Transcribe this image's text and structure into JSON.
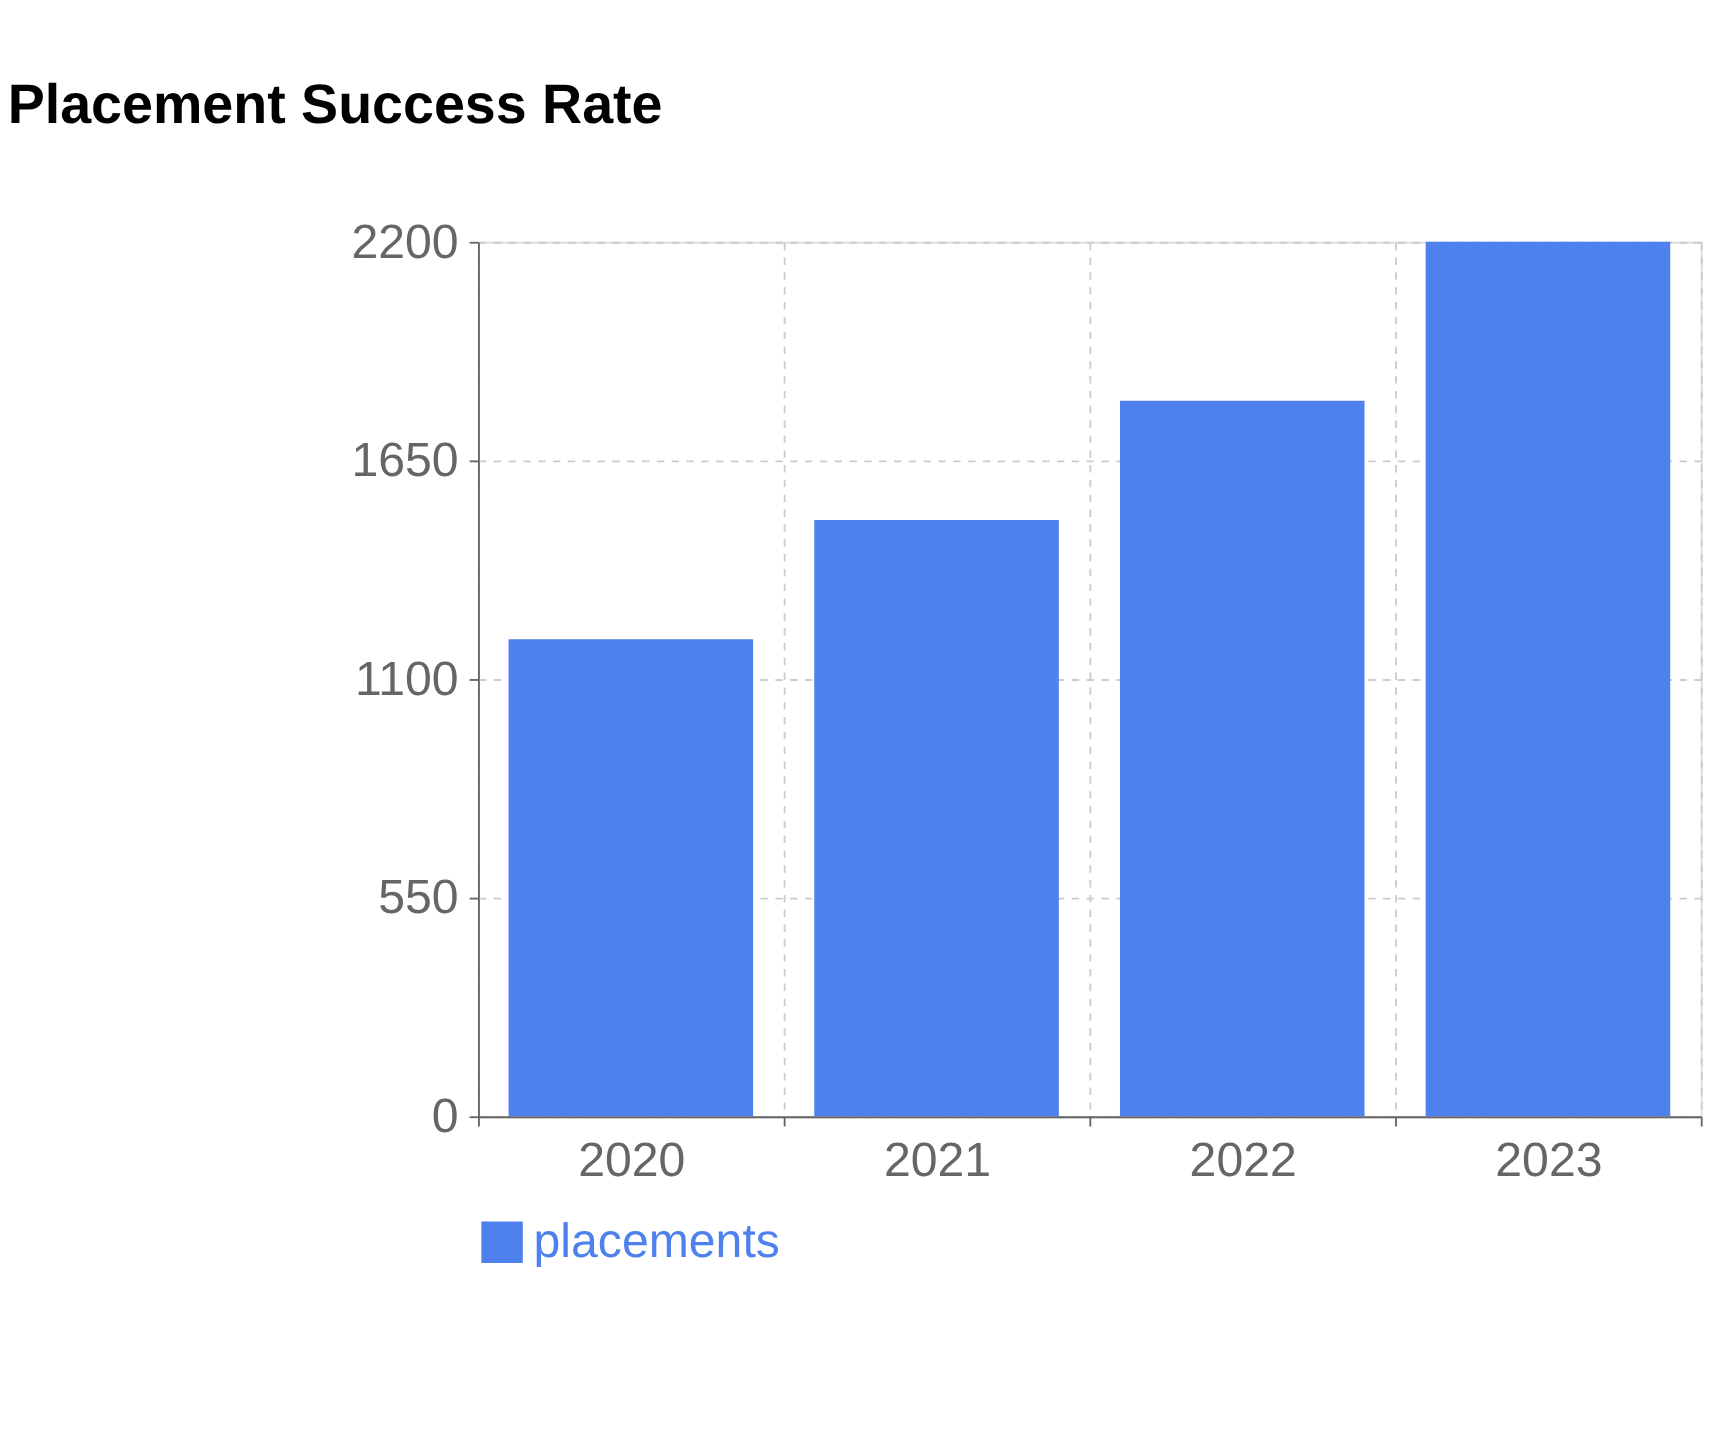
{
  "chart_data": {
    "type": "bar",
    "title": "Placement Success Rate",
    "categories": [
      "2020",
      "2021",
      "2022",
      "2023"
    ],
    "series": [
      {
        "name": "placements",
        "color": "#4e80ee",
        "values": [
          1200,
          1500,
          1800,
          2200
        ]
      }
    ],
    "ylim": [
      0,
      2200
    ],
    "yticks": [
      0,
      550,
      1100,
      1650,
      2200
    ],
    "grid": true,
    "legend": "bottom"
  }
}
